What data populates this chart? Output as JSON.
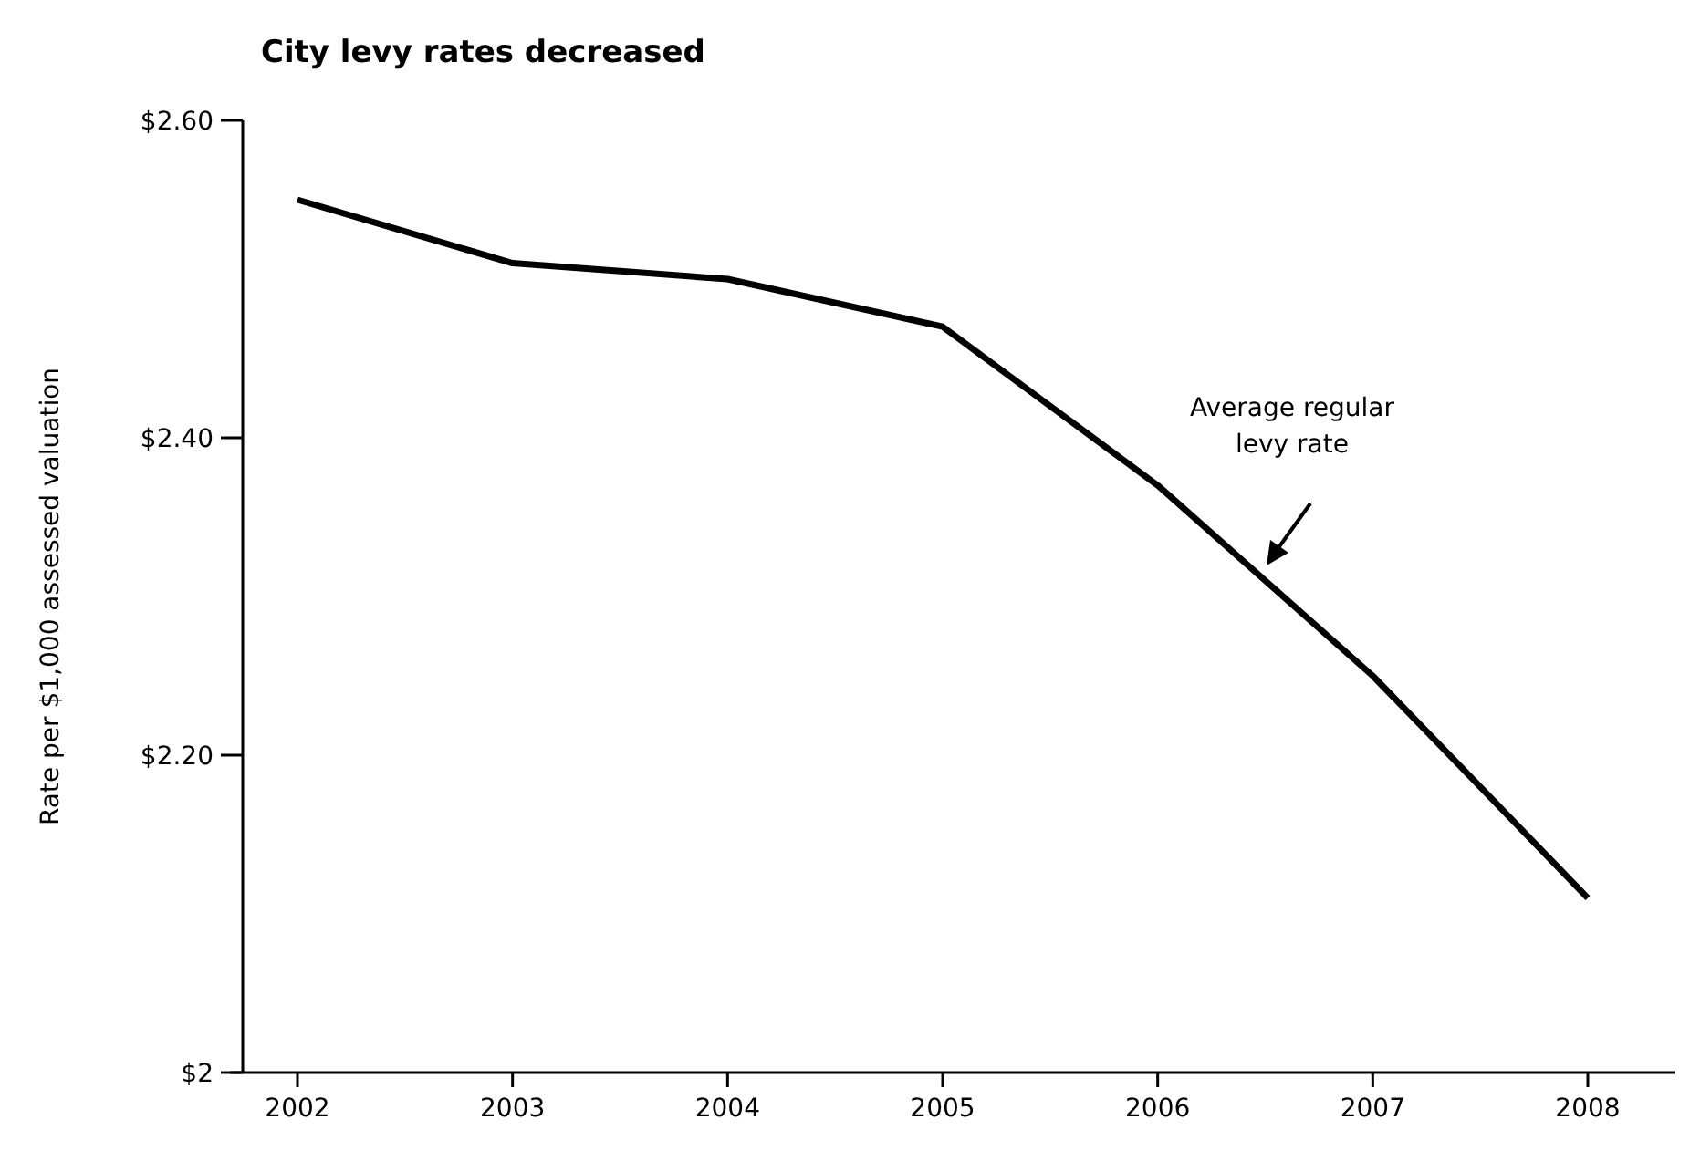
{
  "chart_data": {
    "type": "line",
    "title": "City levy rates decreased",
    "ylabel": "Rate per $1,000 assessed valuation",
    "categories": [
      "2002",
      "2003",
      "2004",
      "2005",
      "2006",
      "2007",
      "2008"
    ],
    "series": [
      {
        "color": "#000000",
        "values": [
          2.55,
          2.51,
          2.5,
          2.47,
          2.37,
          2.25,
          2.11
        ]
      }
    ],
    "ylim": [
      2,
      2.6
    ],
    "yticks": [
      {
        "value": 2,
        "label": "$2"
      },
      {
        "value": 2.2,
        "label": "$2.20"
      },
      {
        "value": 2.4,
        "label": "$2.40"
      },
      {
        "value": 2.6,
        "label": "$2.60"
      }
    ],
    "annotations": [
      "Average regular levy rate"
    ],
    "marker": "none",
    "line_style": "solid"
  }
}
